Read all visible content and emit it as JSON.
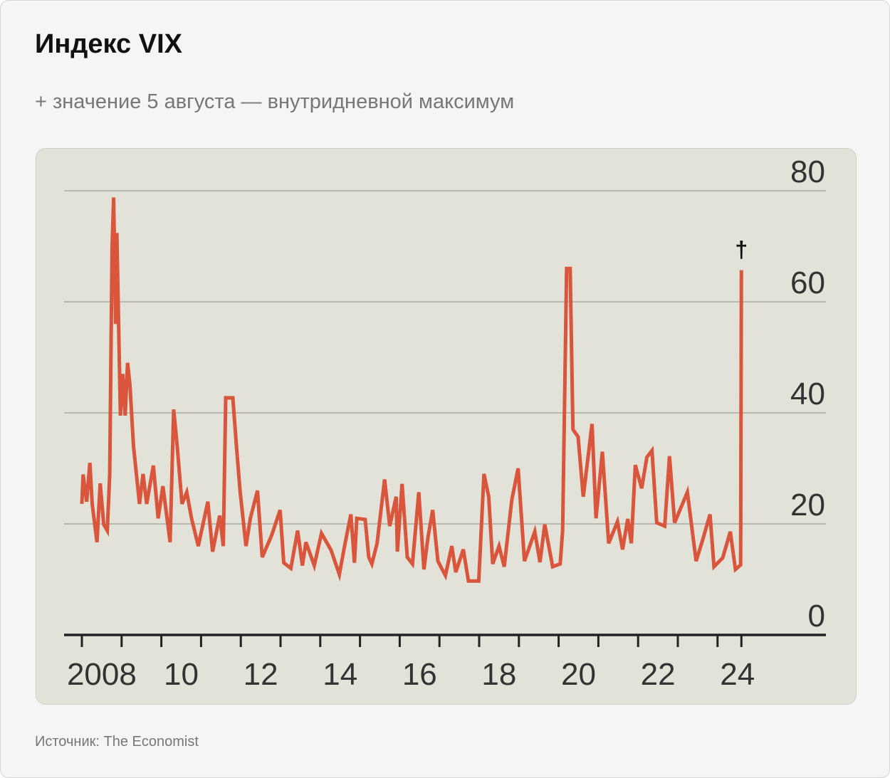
{
  "title": "Индекс VIX",
  "subtitle": "+ значение 5 августа — внутридневной максимум",
  "source": "Источник: The Economist",
  "colors": {
    "line": "#d9553b",
    "grid": "#b9b9b2",
    "axis": "#222222",
    "panel": "#e3e2d9"
  },
  "chart_data": {
    "type": "line",
    "title": "Индекс VIX",
    "xlabel": "",
    "ylabel": "",
    "ylim": [
      0,
      80
    ],
    "yticks": [
      0,
      20,
      40,
      60,
      80
    ],
    "ytick_labels": [
      "0",
      "20",
      "40",
      "60",
      "80"
    ],
    "xlim": [
      2008,
      2025.6
    ],
    "xticks": [
      2008,
      2009,
      2010,
      2011,
      2012,
      2013,
      2014,
      2015,
      2016,
      2017,
      2018,
      2019,
      2020,
      2021,
      2022,
      2023,
      2024,
      2024.6
    ],
    "xlabels": [
      {
        "year": 2008,
        "label": "2008"
      },
      {
        "year": 2010,
        "label": "10"
      },
      {
        "year": 2012,
        "label": "12"
      },
      {
        "year": 2014,
        "label": "14"
      },
      {
        "year": 2016,
        "label": "16"
      },
      {
        "year": 2018,
        "label": "18"
      },
      {
        "year": 2020,
        "label": "20"
      },
      {
        "year": 2022,
        "label": "22"
      },
      {
        "year": 2024,
        "label": "24"
      }
    ],
    "grid": true,
    "annotation": {
      "year": 2024.6,
      "value": 65.7,
      "symbol": "†"
    },
    "series": [
      {
        "name": "VIX",
        "points": [
          [
            2008.0,
            23.6
          ],
          [
            2008.03,
            28.9
          ],
          [
            2008.12,
            24
          ],
          [
            2008.2,
            31
          ],
          [
            2008.26,
            23.6
          ],
          [
            2008.38,
            16.7
          ],
          [
            2008.46,
            27.3
          ],
          [
            2008.55,
            19.9
          ],
          [
            2008.64,
            18.8
          ],
          [
            2008.7,
            28.9
          ],
          [
            2008.76,
            69.8
          ],
          [
            2008.8,
            78.8
          ],
          [
            2008.85,
            56
          ],
          [
            2008.88,
            72.4
          ],
          [
            2008.97,
            39.5
          ],
          [
            2009.03,
            47
          ],
          [
            2009.09,
            39.5
          ],
          [
            2009.15,
            49
          ],
          [
            2009.21,
            45
          ],
          [
            2009.3,
            34
          ],
          [
            2009.45,
            23.6
          ],
          [
            2009.54,
            29
          ],
          [
            2009.63,
            23.6
          ],
          [
            2009.8,
            30.5
          ],
          [
            2009.92,
            21
          ],
          [
            2010.04,
            26.8
          ],
          [
            2010.22,
            16.7
          ],
          [
            2010.31,
            40.6
          ],
          [
            2010.4,
            34
          ],
          [
            2010.52,
            23.6
          ],
          [
            2010.64,
            25.7
          ],
          [
            2010.76,
            21
          ],
          [
            2010.93,
            16
          ],
          [
            2011.17,
            24
          ],
          [
            2011.29,
            15
          ],
          [
            2011.47,
            21.5
          ],
          [
            2011.56,
            16
          ],
          [
            2011.62,
            42.7
          ],
          [
            2011.8,
            42.7
          ],
          [
            2011.89,
            34
          ],
          [
            2011.98,
            26
          ],
          [
            2012.13,
            16
          ],
          [
            2012.24,
            21
          ],
          [
            2012.42,
            26
          ],
          [
            2012.54,
            14
          ],
          [
            2012.78,
            18
          ],
          [
            2012.99,
            22.5
          ],
          [
            2013.08,
            13
          ],
          [
            2013.26,
            12
          ],
          [
            2013.43,
            18.8
          ],
          [
            2013.55,
            12.5
          ],
          [
            2013.64,
            16.7
          ],
          [
            2013.85,
            12.5
          ],
          [
            2014.03,
            18.3
          ],
          [
            2014.27,
            15.3
          ],
          [
            2014.48,
            10.9
          ],
          [
            2014.63,
            16.7
          ],
          [
            2014.77,
            21.7
          ],
          [
            2014.86,
            13
          ],
          [
            2014.92,
            21
          ],
          [
            2015.13,
            20.8
          ],
          [
            2015.22,
            14
          ],
          [
            2015.3,
            12.8
          ],
          [
            2015.43,
            16.5
          ],
          [
            2015.62,
            28
          ],
          [
            2015.75,
            19.6
          ],
          [
            2015.91,
            24.9
          ],
          [
            2015.94,
            15
          ],
          [
            2016.06,
            27.2
          ],
          [
            2016.19,
            14
          ],
          [
            2016.32,
            12.8
          ],
          [
            2016.48,
            25.7
          ],
          [
            2016.61,
            11.8
          ],
          [
            2016.71,
            17.5
          ],
          [
            2016.83,
            22.5
          ],
          [
            2016.96,
            13.3
          ],
          [
            2017.15,
            10.7
          ],
          [
            2017.31,
            16
          ],
          [
            2017.41,
            11.3
          ],
          [
            2017.6,
            15.4
          ],
          [
            2017.73,
            9.7
          ],
          [
            2017.99,
            9.7
          ],
          [
            2018.12,
            29
          ],
          [
            2018.24,
            24.9
          ],
          [
            2018.34,
            12.8
          ],
          [
            2018.5,
            16
          ],
          [
            2018.63,
            12.3
          ],
          [
            2018.82,
            24.3
          ],
          [
            2018.98,
            30
          ],
          [
            2019.14,
            13.3
          ],
          [
            2019.4,
            18.6
          ],
          [
            2019.53,
            13.1
          ],
          [
            2019.65,
            19.9
          ],
          [
            2019.85,
            12.3
          ],
          [
            2020.04,
            12.8
          ],
          [
            2020.1,
            18.8
          ],
          [
            2020.2,
            66
          ],
          [
            2020.29,
            66
          ],
          [
            2020.36,
            37
          ],
          [
            2020.49,
            35.7
          ],
          [
            2020.62,
            24.9
          ],
          [
            2020.84,
            38
          ],
          [
            2020.94,
            21
          ],
          [
            2021.1,
            33
          ],
          [
            2021.26,
            16.5
          ],
          [
            2021.48,
            20.4
          ],
          [
            2021.61,
            15.4
          ],
          [
            2021.74,
            20.9
          ],
          [
            2021.83,
            16.5
          ],
          [
            2021.93,
            30.6
          ],
          [
            2022.09,
            26.4
          ],
          [
            2022.22,
            32
          ],
          [
            2022.35,
            33.2
          ],
          [
            2022.47,
            20.2
          ],
          [
            2022.67,
            19.6
          ],
          [
            2022.79,
            32.2
          ],
          [
            2022.92,
            20.2
          ],
          [
            2023.24,
            25.7
          ],
          [
            2023.46,
            13.3
          ],
          [
            2023.62,
            17
          ],
          [
            2023.81,
            21.7
          ],
          [
            2023.91,
            12.3
          ],
          [
            2024.13,
            13.9
          ],
          [
            2024.32,
            18.6
          ],
          [
            2024.45,
            11.8
          ],
          [
            2024.58,
            12.6
          ],
          [
            2024.6,
            65.7
          ]
        ]
      }
    ]
  }
}
